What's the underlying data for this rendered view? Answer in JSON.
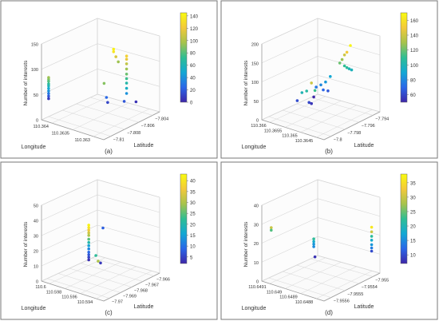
{
  "figure": {
    "colormap_stops": [
      "#3e26a8",
      "#2a67e8",
      "#12a8d4",
      "#2fbe94",
      "#a7c34c",
      "#f3c93a",
      "#f9fb0e"
    ]
  },
  "chart_data": [
    {
      "type": "scatter",
      "panel_label": "(a)",
      "zlabel": "Number of interests",
      "xlabel": "Longitude",
      "ylabel": "Latitude",
      "z_ticks": [
        "0",
        "50",
        "100",
        "150"
      ],
      "x_ticks": [
        "110.364",
        "110.3635",
        "110.363"
      ],
      "y_ticks": [
        "−7.81",
        "−7.808",
        "−7.806",
        "−7.804"
      ],
      "colorbar_ticks": [
        "0",
        "20",
        "40",
        "60",
        "80",
        "100",
        "120",
        "140"
      ],
      "colorbar_range": [
        0,
        145
      ],
      "points": [
        {
          "u": 0.06,
          "v": 0.55,
          "value": 95
        },
        {
          "u": 0.06,
          "v": 0.52,
          "value": 90
        },
        {
          "u": 0.06,
          "v": 0.49,
          "value": 80
        },
        {
          "u": 0.06,
          "v": 0.45,
          "value": 70
        },
        {
          "u": 0.06,
          "v": 0.42,
          "value": 60
        },
        {
          "u": 0.06,
          "v": 0.38,
          "value": 50
        },
        {
          "u": 0.06,
          "v": 0.34,
          "value": 40
        },
        {
          "u": 0.06,
          "v": 0.3,
          "value": 30
        },
        {
          "u": 0.06,
          "v": 0.26,
          "value": 18
        },
        {
          "u": 0.06,
          "v": 0.22,
          "value": 8
        },
        {
          "u": 0.61,
          "v": 0.92,
          "value": 140
        },
        {
          "u": 0.61,
          "v": 0.88,
          "value": 135
        },
        {
          "u": 0.63,
          "v": 0.8,
          "value": 112
        },
        {
          "u": 0.65,
          "v": 0.72,
          "value": 95
        },
        {
          "u": 0.72,
          "v": 0.8,
          "value": 125
        },
        {
          "u": 0.72,
          "v": 0.75,
          "value": 118
        },
        {
          "u": 0.72,
          "v": 0.68,
          "value": 105
        },
        {
          "u": 0.72,
          "v": 0.6,
          "value": 95
        },
        {
          "u": 0.72,
          "v": 0.52,
          "value": 85
        },
        {
          "u": 0.72,
          "v": 0.45,
          "value": 75
        },
        {
          "u": 0.72,
          "v": 0.38,
          "value": 65
        },
        {
          "u": 0.72,
          "v": 0.3,
          "value": 55
        },
        {
          "u": 0.72,
          "v": 0.22,
          "value": 40
        },
        {
          "u": 0.53,
          "v": 0.4,
          "value": 90
        },
        {
          "u": 0.55,
          "v": 0.18,
          "value": 25
        },
        {
          "u": 0.56,
          "v": 0.1,
          "value": 12
        },
        {
          "u": 0.7,
          "v": 0.1,
          "value": 18
        },
        {
          "u": 0.8,
          "v": 0.08,
          "value": 5
        }
      ]
    },
    {
      "type": "scatter",
      "panel_label": "(b)",
      "zlabel": "Number of interests",
      "xlabel": "Longitude",
      "ylabel": "Latitude",
      "z_ticks": [
        "0",
        "50",
        "100",
        "150",
        "200"
      ],
      "x_ticks": [
        "110.366",
        "110.3655",
        "110.365",
        "110.3645"
      ],
      "y_ticks": [
        "−7.8",
        "−7.798",
        "−7.796",
        "−7.794"
      ],
      "colorbar_ticks": [
        "60",
        "80",
        "100",
        "120",
        "140",
        "160"
      ],
      "colorbar_range": [
        50,
        170
      ],
      "points": [
        {
          "u": 0.75,
          "v": 0.96,
          "value": 168
        },
        {
          "u": 0.72,
          "v": 0.86,
          "value": 150
        },
        {
          "u": 0.7,
          "v": 0.82,
          "value": 140
        },
        {
          "u": 0.68,
          "v": 0.75,
          "value": 128
        },
        {
          "u": 0.66,
          "v": 0.7,
          "value": 120
        },
        {
          "u": 0.7,
          "v": 0.65,
          "value": 110
        },
        {
          "u": 0.72,
          "v": 0.62,
          "value": 108
        },
        {
          "u": 0.74,
          "v": 0.6,
          "value": 100
        },
        {
          "u": 0.76,
          "v": 0.58,
          "value": 98
        },
        {
          "u": 0.58,
          "v": 0.5,
          "value": 90
        },
        {
          "u": 0.54,
          "v": 0.42,
          "value": 85
        },
        {
          "u": 0.5,
          "v": 0.38,
          "value": 80
        },
        {
          "u": 0.46,
          "v": 0.35,
          "value": 75
        },
        {
          "u": 0.42,
          "v": 0.42,
          "value": 140
        },
        {
          "u": 0.45,
          "v": 0.3,
          "value": 112
        },
        {
          "u": 0.38,
          "v": 0.3,
          "value": 105
        },
        {
          "u": 0.34,
          "v": 0.28,
          "value": 100
        },
        {
          "u": 0.52,
          "v": 0.3,
          "value": 70
        },
        {
          "u": 0.56,
          "v": 0.28,
          "value": 65
        },
        {
          "u": 0.44,
          "v": 0.2,
          "value": 50
        },
        {
          "u": 0.4,
          "v": 0.12,
          "value": 60
        },
        {
          "u": 0.42,
          "v": 0.1,
          "value": 55
        },
        {
          "u": 0.3,
          "v": 0.16,
          "value": 62
        }
      ]
    },
    {
      "type": "scatter",
      "panel_label": "(c)",
      "zlabel": "Number of interests",
      "xlabel": "Longitude",
      "ylabel": "Latitude",
      "z_ticks": [
        "0",
        "10",
        "20",
        "30",
        "40",
        "50"
      ],
      "x_ticks": [
        "110.6",
        "110.598",
        "110.596",
        "110.594"
      ],
      "y_ticks": [
        "−7.97",
        "−7.969",
        "−7.968",
        "−7.967",
        "−7.966"
      ],
      "colorbar_ticks": [
        "5",
        "10",
        "15",
        "20",
        "25",
        "30",
        "35",
        "40"
      ],
      "colorbar_range": [
        2,
        43
      ],
      "points": [
        {
          "u": 0.4,
          "v": 0.72,
          "value": 42
        },
        {
          "u": 0.4,
          "v": 0.68,
          "value": 40
        },
        {
          "u": 0.4,
          "v": 0.64,
          "value": 36
        },
        {
          "u": 0.4,
          "v": 0.6,
          "value": 33
        },
        {
          "u": 0.4,
          "v": 0.56,
          "value": 30
        },
        {
          "u": 0.4,
          "v": 0.5,
          "value": 25
        },
        {
          "u": 0.4,
          "v": 0.45,
          "value": 20
        },
        {
          "u": 0.4,
          "v": 0.4,
          "value": 15
        },
        {
          "u": 0.4,
          "v": 0.35,
          "value": 12
        },
        {
          "u": 0.4,
          "v": 0.3,
          "value": 9
        },
        {
          "u": 0.4,
          "v": 0.26,
          "value": 7
        },
        {
          "u": 0.4,
          "v": 0.22,
          "value": 5
        },
        {
          "u": 0.4,
          "v": 0.18,
          "value": 3
        },
        {
          "u": 0.46,
          "v": 0.24,
          "value": 22
        },
        {
          "u": 0.48,
          "v": 0.15,
          "value": 30
        },
        {
          "u": 0.52,
          "v": 0.66,
          "value": 8
        },
        {
          "u": 0.5,
          "v": 0.12,
          "value": 4
        }
      ]
    },
    {
      "type": "scatter",
      "panel_label": "(d)",
      "zlabel": "Number of interests",
      "xlabel": "Longitude",
      "ylabel": "Latitude",
      "z_ticks": [
        "0",
        "10",
        "20",
        "30",
        "40"
      ],
      "x_ticks": [
        "110.6491",
        "110.649",
        "110.6489",
        "110.6488"
      ],
      "y_ticks": [
        "−7.9556",
        "−7.9555",
        "−7.9554",
        "−7.955"
      ],
      "colorbar_ticks": [
        "10",
        "15",
        "20",
        "25",
        "30",
        "35"
      ],
      "colorbar_range": [
        7,
        38
      ],
      "points": [
        {
          "u": 0.08,
          "v": 0.72,
          "value": 30
        },
        {
          "u": 0.08,
          "v": 0.68,
          "value": 24
        },
        {
          "u": 0.44,
          "v": 0.5,
          "value": 22
        },
        {
          "u": 0.44,
          "v": 0.46,
          "value": 18
        },
        {
          "u": 0.44,
          "v": 0.42,
          "value": 16
        },
        {
          "u": 0.44,
          "v": 0.38,
          "value": 15
        },
        {
          "u": 0.45,
          "v": 0.22,
          "value": 8
        },
        {
          "u": 0.93,
          "v": 0.62,
          "value": 36
        },
        {
          "u": 0.93,
          "v": 0.55,
          "value": 30
        },
        {
          "u": 0.93,
          "v": 0.48,
          "value": 22
        },
        {
          "u": 0.93,
          "v": 0.42,
          "value": 18
        },
        {
          "u": 0.93,
          "v": 0.35,
          "value": 16
        },
        {
          "u": 0.93,
          "v": 0.3,
          "value": 14
        },
        {
          "u": 0.93,
          "v": 0.25,
          "value": 10
        }
      ]
    }
  ]
}
